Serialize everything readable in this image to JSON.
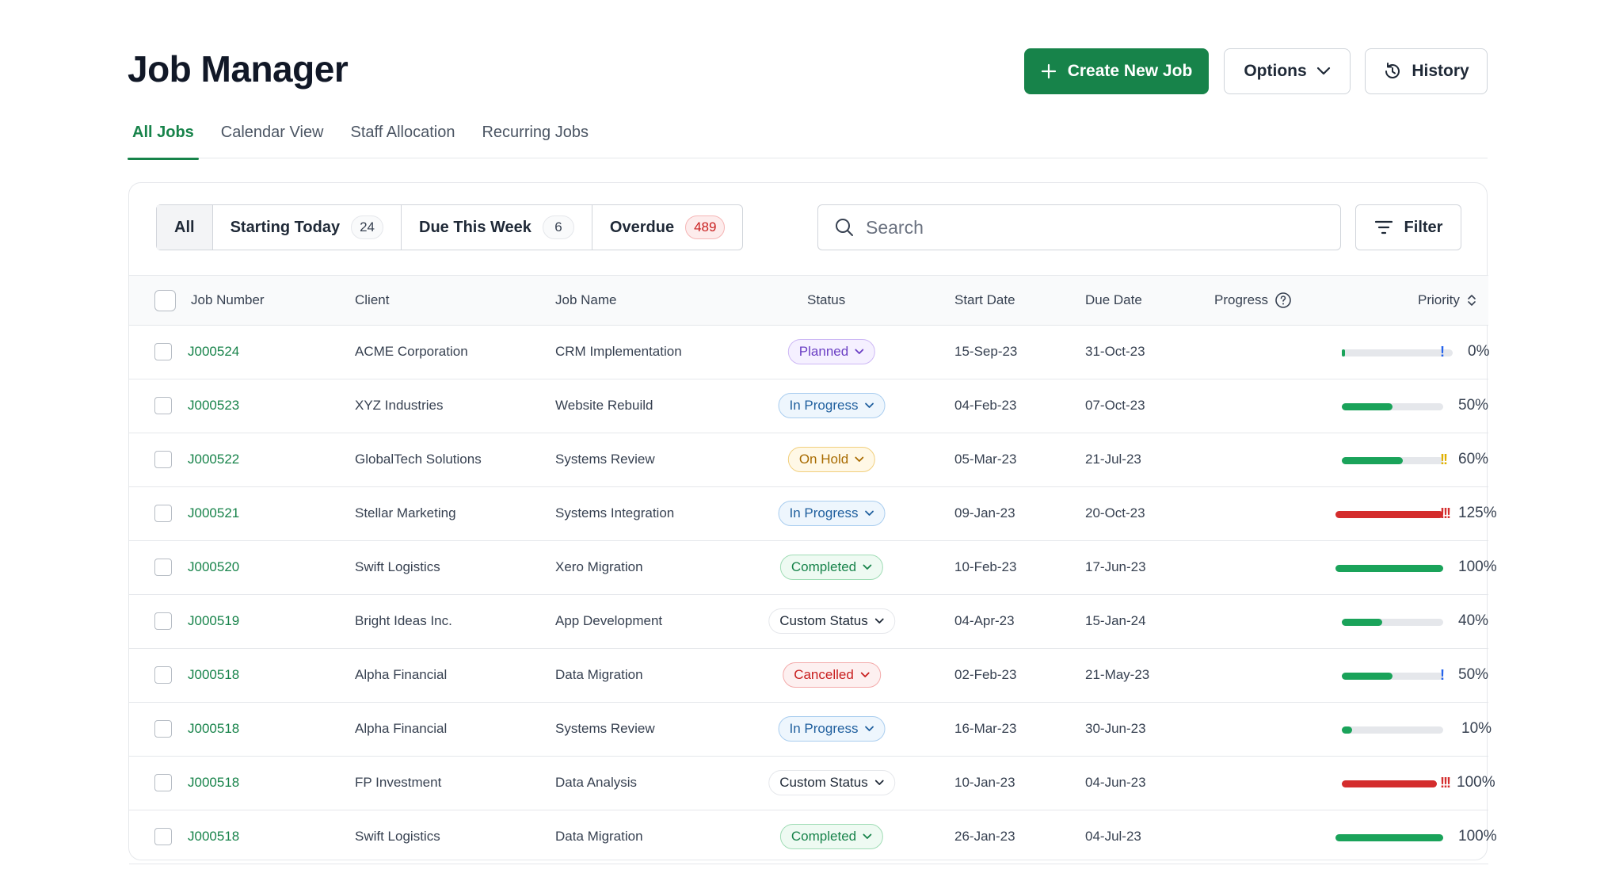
{
  "header": {
    "title": "Job Manager",
    "create_label": "Create New Job",
    "options_label": "Options",
    "history_label": "History"
  },
  "tabs": [
    {
      "label": "All Jobs",
      "active": true
    },
    {
      "label": "Calendar View",
      "active": false
    },
    {
      "label": "Staff Allocation",
      "active": false
    },
    {
      "label": "Recurring Jobs",
      "active": false
    }
  ],
  "quick_filters": [
    {
      "label": "All",
      "count": null
    },
    {
      "label": "Starting Today",
      "count": "24"
    },
    {
      "label": "Due This Week",
      "count": "6"
    },
    {
      "label": "Overdue",
      "count": "489",
      "tone": "danger"
    }
  ],
  "search": {
    "placeholder": "Search",
    "value": ""
  },
  "filter_label": "Filter",
  "columns": {
    "job_number": "Job Number",
    "client": "Client",
    "job_name": "Job Name",
    "status": "Status",
    "start_date": "Start Date",
    "due_date": "Due Date",
    "progress": "Progress",
    "priority": "Priority"
  },
  "colors": {
    "accent": "#17834a",
    "progress_green": "#1aa35a",
    "progress_red": "#d42d2d",
    "priority_blue": "#2563eb",
    "priority_yellow": "#e0b000",
    "priority_red": "#d42d2d"
  },
  "status_styles": {
    "Planned": {
      "bg": "#f5f0ff",
      "border": "#cdb8f5",
      "fg": "#6b3fc4"
    },
    "In Progress": {
      "bg": "#eef6fd",
      "border": "#a9cdef",
      "fg": "#1f5f9e"
    },
    "On Hold": {
      "bg": "#fff8e6",
      "border": "#f1cf7d",
      "fg": "#a86b00"
    },
    "Completed": {
      "bg": "#eefaf2",
      "border": "#9fdcb5",
      "fg": "#17834a"
    },
    "Custom Status": {
      "bg": "#ffffff",
      "border": "#e5e7eb",
      "fg": "#1f2937"
    },
    "Cancelled": {
      "bg": "#fdf0f0",
      "border": "#f3aaaa",
      "fg": "#c81e1e"
    }
  },
  "rows": [
    {
      "job_number": "J000524",
      "client": "ACME Corporation",
      "job_name": "CRM Implementation",
      "status": "Planned",
      "start_date": "15-Sep-23",
      "due_date": "31-Oct-23",
      "progress": 0,
      "progress_label": "0%",
      "priority": "!",
      "priority_level": "low"
    },
    {
      "job_number": "J000523",
      "client": "XYZ Industries",
      "job_name": "Website Rebuild",
      "status": "In Progress",
      "start_date": "04-Feb-23",
      "due_date": "07-Oct-23",
      "progress": 50,
      "progress_label": "50%",
      "priority": "",
      "priority_level": "none"
    },
    {
      "job_number": "J000522",
      "client": "GlobalTech Solutions",
      "job_name": "Systems Review",
      "status": "On Hold",
      "start_date": "05-Mar-23",
      "due_date": "21-Jul-23",
      "progress": 60,
      "progress_label": "60%",
      "priority": "!!",
      "priority_level": "medium"
    },
    {
      "job_number": "J000521",
      "client": "Stellar Marketing",
      "job_name": "Systems Integration",
      "status": "In Progress",
      "start_date": "09-Jan-23",
      "due_date": "20-Oct-23",
      "progress": 125,
      "progress_label": "125%",
      "priority": "!!!",
      "priority_level": "high"
    },
    {
      "job_number": "J000520",
      "client": "Swift Logistics",
      "job_name": "Xero Migration",
      "status": "Completed",
      "start_date": "10-Feb-23",
      "due_date": "17-Jun-23",
      "progress": 100,
      "progress_label": "100%",
      "priority": "",
      "priority_level": "none"
    },
    {
      "job_number": "J000519",
      "client": "Bright Ideas Inc.",
      "job_name": "App Development",
      "status": "Custom Status",
      "start_date": "04-Apr-23",
      "due_date": "15-Jan-24",
      "progress": 40,
      "progress_label": "40%",
      "priority": "",
      "priority_level": "none"
    },
    {
      "job_number": "J000518",
      "client": "Alpha Financial",
      "job_name": "Data Migration",
      "status": "Cancelled",
      "start_date": "02-Feb-23",
      "due_date": "21-May-23",
      "progress": 50,
      "progress_label": "50%",
      "priority": "!",
      "priority_level": "low"
    },
    {
      "job_number": "J000518",
      "client": "Alpha Financial",
      "job_name": "Systems Review",
      "status": "In Progress",
      "start_date": "16-Mar-23",
      "due_date": "30-Jun-23",
      "progress": 10,
      "progress_label": "10%",
      "priority": "",
      "priority_level": "none"
    },
    {
      "job_number": "J000518",
      "client": "FP Investment",
      "job_name": "Data Analysis",
      "status": "Custom Status",
      "start_date": "10-Jan-23",
      "due_date": "04-Jun-23",
      "progress": 100,
      "progress_label": "100%",
      "priority": "!!!",
      "priority_level": "high",
      "overdue": true
    },
    {
      "job_number": "J000518",
      "client": "Swift Logistics",
      "job_name": "Data Migration",
      "status": "Completed",
      "start_date": "26-Jan-23",
      "due_date": "04-Jul-23",
      "progress": 100,
      "progress_label": "100%",
      "priority": "",
      "priority_level": "none"
    }
  ]
}
